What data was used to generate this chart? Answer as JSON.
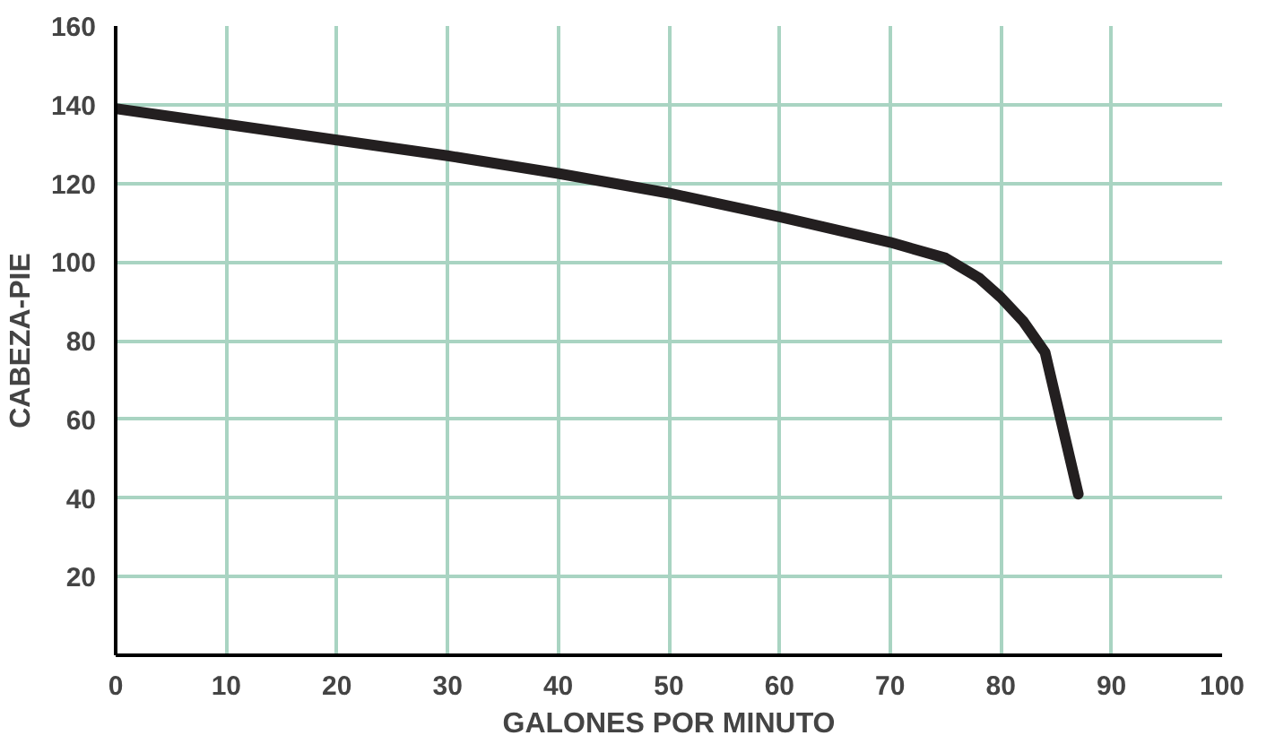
{
  "chart_data": {
    "type": "line",
    "xlabel": "GALONES POR MINUTO",
    "ylabel": "CABEZA-PIE",
    "x": [
      0,
      10,
      20,
      30,
      40,
      50,
      60,
      70,
      75,
      78,
      80,
      82,
      84,
      85,
      86,
      87
    ],
    "series": [
      {
        "color": "#231f20",
        "values": [
          139,
          135,
          131,
          127,
          122.5,
          117.5,
          111.5,
          105,
          101,
          96,
          91,
          85,
          77,
          65,
          53,
          41
        ]
      }
    ],
    "xlim": [
      0,
      100
    ],
    "ylim": [
      0,
      160
    ],
    "xticks": [
      0,
      10,
      20,
      30,
      40,
      50,
      60,
      70,
      80,
      90,
      100
    ],
    "yticks": [
      20,
      40,
      60,
      80,
      100,
      120,
      140,
      160
    ],
    "grid": true,
    "marker": "none",
    "line_style": "solid"
  }
}
